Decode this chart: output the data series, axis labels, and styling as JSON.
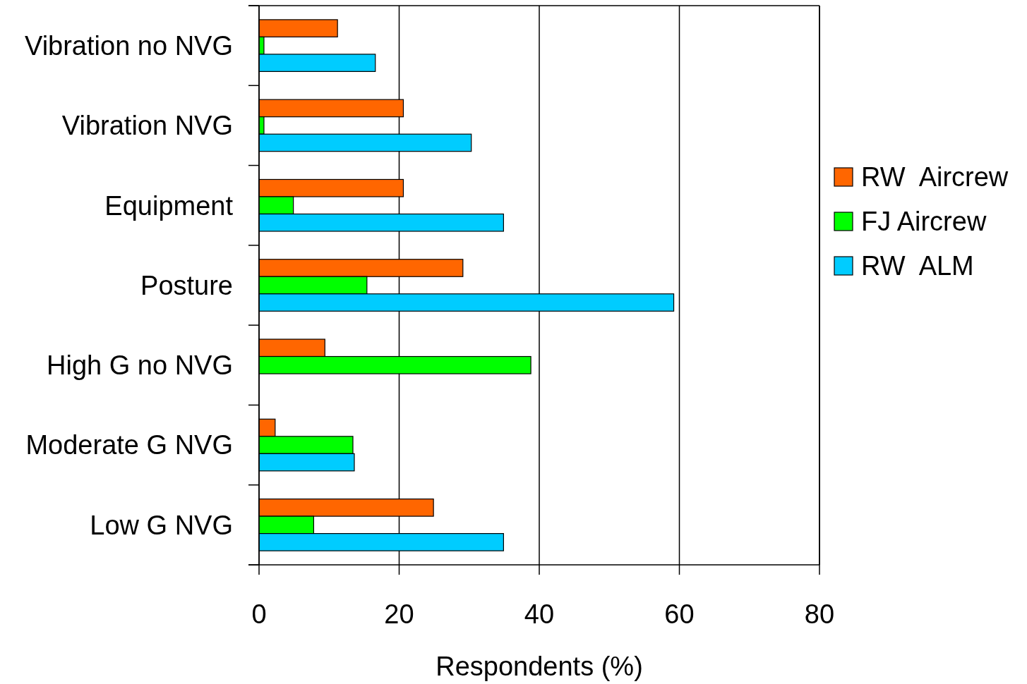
{
  "chart_data": {
    "type": "bar",
    "orientation": "horizontal",
    "xlabel": "Respondents (%)",
    "categories": [
      "Vibration no NVG",
      "Vibration NVG",
      "Equipment",
      "Posture",
      "High G no NVG",
      "Moderate G NVG",
      "Low G NVG"
    ],
    "series": [
      {
        "name": "RW  Aircrew",
        "color": "#ff6600",
        "values": [
          11.2,
          20.6,
          20.6,
          29.1,
          9.4,
          2.3,
          24.9
        ]
      },
      {
        "name": "FJ Aircrew",
        "color": "#00ff00",
        "values": [
          0.7,
          0.7,
          4.9,
          15.4,
          38.8,
          13.4,
          7.8
        ]
      },
      {
        "name": "RW  ALM",
        "color": "#00ccff",
        "values": [
          16.6,
          30.3,
          34.9,
          59.2,
          null,
          13.6,
          34.9
        ]
      }
    ],
    "xlim": [
      0,
      80
    ],
    "xticks": [
      0,
      20,
      40,
      60,
      80
    ],
    "grid": "x",
    "legend": "right"
  }
}
